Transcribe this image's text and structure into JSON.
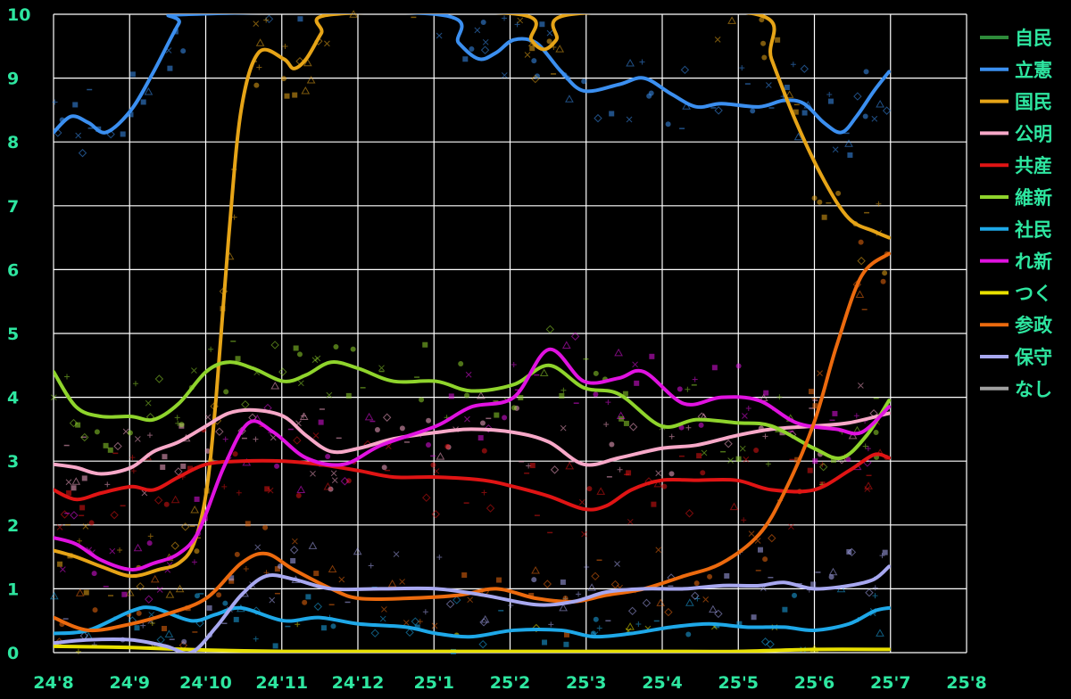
{
  "chart_data": {
    "type": "line",
    "title": "",
    "xlabel": "",
    "ylabel": "",
    "ylim": [
      0,
      10
    ],
    "xlim": [
      "2024-08-01",
      "2025-08-01"
    ],
    "grid": true,
    "legend_position": "right",
    "x_tick_labels": [
      "24'8",
      "24'9",
      "24'10",
      "24'11",
      "24'12",
      "25'1",
      "25'2",
      "25'3",
      "25'4",
      "25'5",
      "25'6",
      "25'7",
      "25'8"
    ],
    "y_tick_labels": [
      "0",
      "1",
      "2",
      "3",
      "4",
      "5",
      "6",
      "7",
      "8",
      "9",
      "10"
    ],
    "series": [
      {
        "name": "自民",
        "color": "#2e8b3a",
        "points": []
      },
      {
        "name": "立憲",
        "color": "#3b8ff0",
        "points": [
          [
            "2024-08-01",
            8.15
          ],
          [
            "2024-08-08",
            8.4
          ],
          [
            "2024-08-15",
            8.3
          ],
          [
            "2024-08-22",
            8.15
          ],
          [
            "2024-09-01",
            8.5
          ],
          [
            "2024-09-10",
            9.1
          ],
          [
            "2024-09-20",
            9.85
          ],
          [
            "2024-09-24",
            10.0
          ],
          [
            "2025-01-01",
            10.0
          ],
          [
            "2025-01-10",
            9.55
          ],
          [
            "2025-01-18",
            9.3
          ],
          [
            "2025-01-25",
            9.4
          ],
          [
            "2025-02-01",
            9.6
          ],
          [
            "2025-02-10",
            9.55
          ],
          [
            "2025-02-20",
            9.1
          ],
          [
            "2025-03-01",
            8.8
          ],
          [
            "2025-03-15",
            8.9
          ],
          [
            "2025-03-25",
            9.0
          ],
          [
            "2025-04-05",
            8.75
          ],
          [
            "2025-04-15",
            8.55
          ],
          [
            "2025-04-25",
            8.6
          ],
          [
            "2025-05-10",
            8.55
          ],
          [
            "2025-05-20",
            8.65
          ],
          [
            "2025-05-28",
            8.6
          ],
          [
            "2025-06-05",
            8.3
          ],
          [
            "2025-06-12",
            8.15
          ],
          [
            "2025-06-18",
            8.4
          ],
          [
            "2025-06-25",
            8.8
          ],
          [
            "2025-07-01",
            9.1
          ]
        ]
      },
      {
        "name": "国民",
        "color": "#e6a417",
        "points": [
          [
            "2024-08-01",
            1.6
          ],
          [
            "2024-08-10",
            1.5
          ],
          [
            "2024-08-20",
            1.35
          ],
          [
            "2024-09-01",
            1.2
          ],
          [
            "2024-09-12",
            1.3
          ],
          [
            "2024-09-20",
            1.4
          ],
          [
            "2024-09-26",
            1.7
          ],
          [
            "2024-10-01",
            2.5
          ],
          [
            "2024-10-05",
            4.0
          ],
          [
            "2024-10-10",
            6.5
          ],
          [
            "2024-10-15",
            8.5
          ],
          [
            "2024-10-22",
            9.4
          ],
          [
            "2024-11-01",
            9.3
          ],
          [
            "2024-11-05",
            9.15
          ],
          [
            "2024-11-10",
            9.3
          ],
          [
            "2024-11-16",
            9.7
          ],
          [
            "2024-11-21",
            10.0
          ],
          [
            "2025-02-03",
            10.0
          ],
          [
            "2025-02-08",
            9.6
          ],
          [
            "2025-02-13",
            9.45
          ],
          [
            "2025-02-18",
            9.6
          ],
          [
            "2025-02-24",
            10.0
          ],
          [
            "2025-05-09",
            10.0
          ],
          [
            "2025-05-15",
            9.3
          ],
          [
            "2025-05-25",
            8.3
          ],
          [
            "2025-06-05",
            7.4
          ],
          [
            "2025-06-15",
            6.8
          ],
          [
            "2025-06-25",
            6.6
          ],
          [
            "2025-07-01",
            6.5
          ]
        ]
      },
      {
        "name": "公明",
        "color": "#f7a8c8",
        "points": [
          [
            "2024-08-01",
            2.95
          ],
          [
            "2024-08-10",
            2.9
          ],
          [
            "2024-08-20",
            2.8
          ],
          [
            "2024-09-01",
            2.9
          ],
          [
            "2024-09-10",
            3.15
          ],
          [
            "2024-09-20",
            3.3
          ],
          [
            "2024-10-01",
            3.55
          ],
          [
            "2024-10-10",
            3.75
          ],
          [
            "2024-10-20",
            3.8
          ],
          [
            "2024-11-01",
            3.7
          ],
          [
            "2024-11-10",
            3.4
          ],
          [
            "2024-11-20",
            3.15
          ],
          [
            "2024-12-01",
            3.2
          ],
          [
            "2024-12-15",
            3.35
          ],
          [
            "2025-01-01",
            3.45
          ],
          [
            "2025-01-15",
            3.5
          ],
          [
            "2025-02-01",
            3.45
          ],
          [
            "2025-02-15",
            3.3
          ],
          [
            "2025-03-01",
            2.95
          ],
          [
            "2025-03-15",
            3.05
          ],
          [
            "2025-04-01",
            3.2
          ],
          [
            "2025-04-15",
            3.25
          ],
          [
            "2025-05-01",
            3.4
          ],
          [
            "2025-05-15",
            3.5
          ],
          [
            "2025-06-01",
            3.55
          ],
          [
            "2025-06-15",
            3.6
          ],
          [
            "2025-07-01",
            3.75
          ]
        ]
      },
      {
        "name": "共産",
        "color": "#e01414",
        "points": [
          [
            "2024-08-01",
            2.55
          ],
          [
            "2024-08-10",
            2.4
          ],
          [
            "2024-08-20",
            2.5
          ],
          [
            "2024-09-01",
            2.6
          ],
          [
            "2024-09-10",
            2.55
          ],
          [
            "2024-09-20",
            2.75
          ],
          [
            "2024-10-01",
            2.95
          ],
          [
            "2024-10-15",
            3.0
          ],
          [
            "2024-11-01",
            3.0
          ],
          [
            "2024-11-15",
            2.95
          ],
          [
            "2024-12-01",
            2.85
          ],
          [
            "2024-12-15",
            2.75
          ],
          [
            "2025-01-01",
            2.75
          ],
          [
            "2025-01-20",
            2.7
          ],
          [
            "2025-02-01",
            2.6
          ],
          [
            "2025-02-15",
            2.45
          ],
          [
            "2025-03-01",
            2.25
          ],
          [
            "2025-03-10",
            2.3
          ],
          [
            "2025-03-20",
            2.55
          ],
          [
            "2025-04-01",
            2.7
          ],
          [
            "2025-04-15",
            2.7
          ],
          [
            "2025-05-01",
            2.7
          ],
          [
            "2025-05-15",
            2.55
          ],
          [
            "2025-06-01",
            2.55
          ],
          [
            "2025-06-15",
            2.85
          ],
          [
            "2025-06-25",
            3.1
          ],
          [
            "2025-07-01",
            3.05
          ]
        ]
      },
      {
        "name": "維新",
        "color": "#8fd42c",
        "points": [
          [
            "2024-08-01",
            4.4
          ],
          [
            "2024-08-10",
            3.85
          ],
          [
            "2024-08-20",
            3.7
          ],
          [
            "2024-09-01",
            3.7
          ],
          [
            "2024-09-10",
            3.65
          ],
          [
            "2024-09-20",
            3.9
          ],
          [
            "2024-10-01",
            4.4
          ],
          [
            "2024-10-10",
            4.55
          ],
          [
            "2024-10-20",
            4.45
          ],
          [
            "2024-11-01",
            4.25
          ],
          [
            "2024-11-10",
            4.35
          ],
          [
            "2024-11-20",
            4.55
          ],
          [
            "2024-12-01",
            4.45
          ],
          [
            "2024-12-15",
            4.25
          ],
          [
            "2025-01-01",
            4.25
          ],
          [
            "2025-01-15",
            4.1
          ],
          [
            "2025-02-01",
            4.2
          ],
          [
            "2025-02-15",
            4.5
          ],
          [
            "2025-03-01",
            4.15
          ],
          [
            "2025-03-15",
            4.05
          ],
          [
            "2025-04-01",
            3.55
          ],
          [
            "2025-04-15",
            3.65
          ],
          [
            "2025-05-01",
            3.6
          ],
          [
            "2025-05-15",
            3.55
          ],
          [
            "2025-06-01",
            3.2
          ],
          [
            "2025-06-12",
            3.05
          ],
          [
            "2025-06-22",
            3.4
          ],
          [
            "2025-07-01",
            3.95
          ]
        ]
      },
      {
        "name": "社民",
        "color": "#1ea8e8",
        "points": [
          [
            "2024-08-01",
            0.3
          ],
          [
            "2024-08-15",
            0.35
          ],
          [
            "2024-09-01",
            0.65
          ],
          [
            "2024-09-10",
            0.7
          ],
          [
            "2024-09-25",
            0.5
          ],
          [
            "2024-10-05",
            0.6
          ],
          [
            "2024-10-15",
            0.7
          ],
          [
            "2024-11-01",
            0.5
          ],
          [
            "2024-11-15",
            0.55
          ],
          [
            "2024-12-01",
            0.45
          ],
          [
            "2024-12-20",
            0.4
          ],
          [
            "2025-01-01",
            0.3
          ],
          [
            "2025-01-15",
            0.25
          ],
          [
            "2025-02-01",
            0.35
          ],
          [
            "2025-02-20",
            0.35
          ],
          [
            "2025-03-05",
            0.25
          ],
          [
            "2025-03-20",
            0.3
          ],
          [
            "2025-04-05",
            0.4
          ],
          [
            "2025-04-20",
            0.45
          ],
          [
            "2025-05-05",
            0.4
          ],
          [
            "2025-05-20",
            0.4
          ],
          [
            "2025-06-01",
            0.35
          ],
          [
            "2025-06-15",
            0.45
          ],
          [
            "2025-06-25",
            0.65
          ],
          [
            "2025-07-01",
            0.7
          ]
        ]
      },
      {
        "name": "れ新",
        "color": "#e012e0",
        "points": [
          [
            "2024-08-01",
            1.8
          ],
          [
            "2024-08-10",
            1.7
          ],
          [
            "2024-08-20",
            1.45
          ],
          [
            "2024-09-01",
            1.3
          ],
          [
            "2024-09-10",
            1.4
          ],
          [
            "2024-09-20",
            1.55
          ],
          [
            "2024-09-28",
            1.9
          ],
          [
            "2024-10-08",
            2.9
          ],
          [
            "2024-10-18",
            3.6
          ],
          [
            "2024-10-28",
            3.45
          ],
          [
            "2024-11-10",
            3.05
          ],
          [
            "2024-11-25",
            2.95
          ],
          [
            "2024-12-10",
            3.25
          ],
          [
            "2025-01-01",
            3.55
          ],
          [
            "2025-01-15",
            3.85
          ],
          [
            "2025-02-01",
            4.0
          ],
          [
            "2025-02-15",
            4.75
          ],
          [
            "2025-03-01",
            4.25
          ],
          [
            "2025-03-15",
            4.3
          ],
          [
            "2025-03-25",
            4.4
          ],
          [
            "2025-04-10",
            3.9
          ],
          [
            "2025-04-25",
            4.0
          ],
          [
            "2025-05-10",
            3.95
          ],
          [
            "2025-05-25",
            3.6
          ],
          [
            "2025-06-10",
            3.5
          ],
          [
            "2025-06-20",
            3.45
          ],
          [
            "2025-07-01",
            3.85
          ]
        ]
      },
      {
        "name": "つく",
        "color": "#e8e000",
        "points": [
          [
            "2024-08-01",
            0.1
          ],
          [
            "2024-09-01",
            0.08
          ],
          [
            "2024-10-01",
            0.04
          ],
          [
            "2024-11-01",
            0.02
          ],
          [
            "2024-12-01",
            0.02
          ],
          [
            "2025-01-01",
            0.02
          ],
          [
            "2025-02-01",
            0.02
          ],
          [
            "2025-03-01",
            0.02
          ],
          [
            "2025-04-01",
            0.02
          ],
          [
            "2025-05-01",
            0.02
          ],
          [
            "2025-06-01",
            0.05
          ],
          [
            "2025-07-01",
            0.05
          ]
        ]
      },
      {
        "name": "参政",
        "color": "#ec6a0e",
        "points": [
          [
            "2024-08-01",
            0.55
          ],
          [
            "2024-08-15",
            0.35
          ],
          [
            "2024-09-01",
            0.45
          ],
          [
            "2024-09-15",
            0.6
          ],
          [
            "2024-10-01",
            0.85
          ],
          [
            "2024-10-15",
            1.4
          ],
          [
            "2024-10-25",
            1.55
          ],
          [
            "2024-11-05",
            1.3
          ],
          [
            "2024-11-20",
            1.0
          ],
          [
            "2024-12-01",
            0.85
          ],
          [
            "2024-12-20",
            0.85
          ],
          [
            "2025-01-10",
            0.9
          ],
          [
            "2025-01-25",
            1.0
          ],
          [
            "2025-02-10",
            0.85
          ],
          [
            "2025-02-25",
            0.8
          ],
          [
            "2025-03-10",
            0.9
          ],
          [
            "2025-03-25",
            1.0
          ],
          [
            "2025-04-10",
            1.2
          ],
          [
            "2025-04-25",
            1.4
          ],
          [
            "2025-05-10",
            1.85
          ],
          [
            "2025-05-20",
            2.5
          ],
          [
            "2025-06-01",
            3.6
          ],
          [
            "2025-06-10",
            4.8
          ],
          [
            "2025-06-20",
            5.9
          ],
          [
            "2025-07-01",
            6.25
          ]
        ]
      },
      {
        "name": "保守",
        "color": "#a8a8f0",
        "points": [
          [
            "2024-08-01",
            0.15
          ],
          [
            "2024-08-15",
            0.2
          ],
          [
            "2024-09-01",
            0.2
          ],
          [
            "2024-09-15",
            0.1
          ],
          [
            "2024-09-25",
            0.0
          ],
          [
            "2024-10-05",
            0.4
          ],
          [
            "2024-10-15",
            0.9
          ],
          [
            "2024-10-25",
            1.2
          ],
          [
            "2024-11-05",
            1.15
          ],
          [
            "2024-11-20",
            1.0
          ],
          [
            "2024-12-10",
            1.0
          ],
          [
            "2025-01-01",
            1.0
          ],
          [
            "2025-01-20",
            0.9
          ],
          [
            "2025-02-10",
            0.75
          ],
          [
            "2025-02-25",
            0.8
          ],
          [
            "2025-03-10",
            0.95
          ],
          [
            "2025-03-25",
            1.0
          ],
          [
            "2025-04-10",
            1.0
          ],
          [
            "2025-04-25",
            1.05
          ],
          [
            "2025-05-10",
            1.05
          ],
          [
            "2025-05-20",
            1.1
          ],
          [
            "2025-06-01",
            1.0
          ],
          [
            "2025-06-15",
            1.05
          ],
          [
            "2025-06-25",
            1.15
          ],
          [
            "2025-07-01",
            1.35
          ]
        ]
      },
      {
        "name": "なし",
        "color": "#a0a0a0",
        "points": []
      }
    ]
  }
}
